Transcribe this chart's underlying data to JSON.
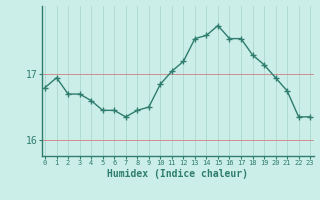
{
  "xlabel": "Humidex (Indice chaleur)",
  "x": [
    0,
    1,
    2,
    3,
    4,
    5,
    6,
    7,
    8,
    9,
    10,
    11,
    12,
    13,
    14,
    15,
    16,
    17,
    18,
    19,
    20,
    21,
    22,
    23
  ],
  "y": [
    16.8,
    16.95,
    16.7,
    16.7,
    16.6,
    16.45,
    16.45,
    16.35,
    16.45,
    16.5,
    16.85,
    17.05,
    17.2,
    17.55,
    17.6,
    17.75,
    17.55,
    17.55,
    17.3,
    17.15,
    16.95,
    16.75,
    16.35,
    16.35
  ],
  "line_color": "#2e7d6e",
  "marker": "+",
  "marker_color": "#2e7d6e",
  "bg_color": "#cceee8",
  "vgrid_color": "#aad8d0",
  "hgrid_color": "#d08080",
  "axis_color": "#2e7d6e",
  "tick_label_color": "#2e7d6e",
  "xlabel_color": "#2e7d6e",
  "yticks": [
    16,
    17
  ],
  "ylim": [
    15.75,
    18.05
  ],
  "xlim": [
    -0.3,
    23.3
  ]
}
